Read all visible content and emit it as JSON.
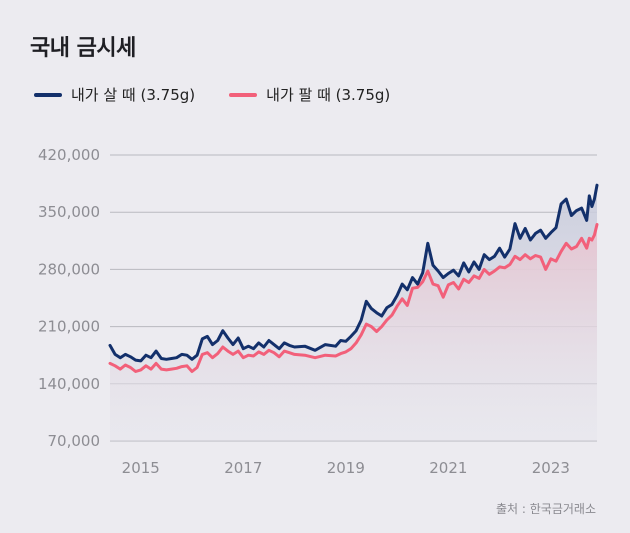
{
  "title": "국내 금시세",
  "source": "출처 : 한국금거래소",
  "colors": {
    "buy": "#13306b",
    "sell": "#f2607a",
    "grid": "#b9b9bf",
    "tick": "#8d8d93"
  },
  "chart_data": {
    "type": "line",
    "title": "국내 금시세",
    "xlabel": "",
    "ylabel": "",
    "xlim": [
      2014.4,
      2023.9
    ],
    "ylim": [
      70000,
      420000
    ],
    "yticks": [
      420000,
      350000,
      280000,
      210000,
      140000,
      70000
    ],
    "ytick_labels": [
      "420,000",
      "350,000",
      "280,000",
      "210,000",
      "140,000",
      "70,000"
    ],
    "xticks": [
      2015,
      2017,
      2019,
      2021,
      2023
    ],
    "xtick_labels": [
      "2015",
      "2017",
      "2019",
      "2021",
      "2023"
    ],
    "grid": true,
    "legend": "top-left",
    "series": [
      {
        "name": "내가 살 때 (3.75g)",
        "color": "#13306b",
        "points": [
          [
            2014.4,
            187000
          ],
          [
            2014.5,
            176000
          ],
          [
            2014.6,
            172000
          ],
          [
            2014.7,
            176000
          ],
          [
            2014.8,
            173000
          ],
          [
            2014.9,
            169000
          ],
          [
            2015.0,
            168000
          ],
          [
            2015.1,
            175000
          ],
          [
            2015.2,
            172000
          ],
          [
            2015.3,
            180000
          ],
          [
            2015.4,
            171000
          ],
          [
            2015.5,
            170000
          ],
          [
            2015.6,
            171000
          ],
          [
            2015.7,
            172000
          ],
          [
            2015.8,
            176000
          ],
          [
            2015.9,
            175000
          ],
          [
            2016.0,
            170000
          ],
          [
            2016.1,
            175000
          ],
          [
            2016.2,
            195000
          ],
          [
            2016.3,
            198000
          ],
          [
            2016.4,
            188000
          ],
          [
            2016.5,
            193000
          ],
          [
            2016.6,
            205000
          ],
          [
            2016.7,
            196000
          ],
          [
            2016.8,
            188000
          ],
          [
            2016.9,
            196000
          ],
          [
            2017.0,
            183000
          ],
          [
            2017.1,
            186000
          ],
          [
            2017.2,
            183000
          ],
          [
            2017.3,
            190000
          ],
          [
            2017.4,
            185000
          ],
          [
            2017.5,
            193000
          ],
          [
            2017.6,
            188000
          ],
          [
            2017.7,
            183000
          ],
          [
            2017.8,
            190000
          ],
          [
            2017.9,
            187000
          ],
          [
            2018.0,
            185000
          ],
          [
            2018.2,
            186000
          ],
          [
            2018.4,
            181000
          ],
          [
            2018.6,
            188000
          ],
          [
            2018.8,
            186000
          ],
          [
            2018.9,
            193000
          ],
          [
            2019.0,
            192000
          ],
          [
            2019.1,
            198000
          ],
          [
            2019.2,
            205000
          ],
          [
            2019.3,
            218000
          ],
          [
            2019.4,
            241000
          ],
          [
            2019.5,
            232000
          ],
          [
            2019.6,
            227000
          ],
          [
            2019.7,
            223000
          ],
          [
            2019.8,
            233000
          ],
          [
            2019.9,
            237000
          ],
          [
            2020.0,
            248000
          ],
          [
            2020.1,
            262000
          ],
          [
            2020.2,
            255000
          ],
          [
            2020.3,
            270000
          ],
          [
            2020.4,
            262000
          ],
          [
            2020.5,
            276000
          ],
          [
            2020.6,
            312000
          ],
          [
            2020.7,
            285000
          ],
          [
            2020.8,
            278000
          ],
          [
            2020.9,
            270000
          ],
          [
            2021.0,
            275000
          ],
          [
            2021.1,
            279000
          ],
          [
            2021.2,
            272000
          ],
          [
            2021.3,
            288000
          ],
          [
            2021.4,
            277000
          ],
          [
            2021.5,
            289000
          ],
          [
            2021.6,
            280000
          ],
          [
            2021.7,
            298000
          ],
          [
            2021.8,
            292000
          ],
          [
            2021.9,
            296000
          ],
          [
            2022.0,
            306000
          ],
          [
            2022.1,
            295000
          ],
          [
            2022.2,
            305000
          ],
          [
            2022.3,
            336000
          ],
          [
            2022.4,
            318000
          ],
          [
            2022.5,
            330000
          ],
          [
            2022.6,
            316000
          ],
          [
            2022.7,
            324000
          ],
          [
            2022.8,
            328000
          ],
          [
            2022.9,
            318000
          ],
          [
            2023.0,
            325000
          ],
          [
            2023.1,
            331000
          ],
          [
            2023.2,
            360000
          ],
          [
            2023.3,
            366000
          ],
          [
            2023.4,
            346000
          ],
          [
            2023.5,
            352000
          ],
          [
            2023.6,
            355000
          ],
          [
            2023.7,
            340000
          ],
          [
            2023.75,
            370000
          ],
          [
            2023.8,
            357000
          ],
          [
            2023.85,
            366000
          ],
          [
            2023.9,
            383000
          ]
        ]
      },
      {
        "name": "내가 팔 때 (3.75g)",
        "color": "#f2607a",
        "points": [
          [
            2014.4,
            165000
          ],
          [
            2014.5,
            162000
          ],
          [
            2014.6,
            158000
          ],
          [
            2014.7,
            163000
          ],
          [
            2014.8,
            160000
          ],
          [
            2014.9,
            155000
          ],
          [
            2015.0,
            157000
          ],
          [
            2015.1,
            162000
          ],
          [
            2015.2,
            158000
          ],
          [
            2015.3,
            165000
          ],
          [
            2015.4,
            158000
          ],
          [
            2015.5,
            157000
          ],
          [
            2015.6,
            158000
          ],
          [
            2015.7,
            159000
          ],
          [
            2015.8,
            161000
          ],
          [
            2015.9,
            162000
          ],
          [
            2016.0,
            155000
          ],
          [
            2016.1,
            160000
          ],
          [
            2016.2,
            176000
          ],
          [
            2016.3,
            178000
          ],
          [
            2016.4,
            172000
          ],
          [
            2016.5,
            177000
          ],
          [
            2016.6,
            185000
          ],
          [
            2016.7,
            180000
          ],
          [
            2016.8,
            176000
          ],
          [
            2016.9,
            180000
          ],
          [
            2017.0,
            172000
          ],
          [
            2017.1,
            175000
          ],
          [
            2017.2,
            174000
          ],
          [
            2017.3,
            179000
          ],
          [
            2017.4,
            176000
          ],
          [
            2017.5,
            181000
          ],
          [
            2017.6,
            178000
          ],
          [
            2017.7,
            173000
          ],
          [
            2017.8,
            180000
          ],
          [
            2017.9,
            178000
          ],
          [
            2018.0,
            176000
          ],
          [
            2018.2,
            175000
          ],
          [
            2018.4,
            172000
          ],
          [
            2018.6,
            175000
          ],
          [
            2018.8,
            174000
          ],
          [
            2018.9,
            177000
          ],
          [
            2019.0,
            179000
          ],
          [
            2019.1,
            183000
          ],
          [
            2019.2,
            190000
          ],
          [
            2019.3,
            200000
          ],
          [
            2019.4,
            213000
          ],
          [
            2019.5,
            210000
          ],
          [
            2019.6,
            204000
          ],
          [
            2019.7,
            210000
          ],
          [
            2019.8,
            218000
          ],
          [
            2019.9,
            224000
          ],
          [
            2020.0,
            235000
          ],
          [
            2020.1,
            244000
          ],
          [
            2020.2,
            236000
          ],
          [
            2020.3,
            257000
          ],
          [
            2020.4,
            258000
          ],
          [
            2020.5,
            265000
          ],
          [
            2020.6,
            278000
          ],
          [
            2020.7,
            262000
          ],
          [
            2020.8,
            260000
          ],
          [
            2020.9,
            246000
          ],
          [
            2021.0,
            261000
          ],
          [
            2021.1,
            264000
          ],
          [
            2021.2,
            256000
          ],
          [
            2021.3,
            268000
          ],
          [
            2021.4,
            264000
          ],
          [
            2021.5,
            272000
          ],
          [
            2021.6,
            269000
          ],
          [
            2021.7,
            280000
          ],
          [
            2021.8,
            274000
          ],
          [
            2021.9,
            278000
          ],
          [
            2022.0,
            283000
          ],
          [
            2022.1,
            282000
          ],
          [
            2022.2,
            286000
          ],
          [
            2022.3,
            296000
          ],
          [
            2022.4,
            292000
          ],
          [
            2022.5,
            298000
          ],
          [
            2022.6,
            293000
          ],
          [
            2022.7,
            297000
          ],
          [
            2022.8,
            295000
          ],
          [
            2022.9,
            280000
          ],
          [
            2023.0,
            293000
          ],
          [
            2023.1,
            290000
          ],
          [
            2023.2,
            302000
          ],
          [
            2023.3,
            312000
          ],
          [
            2023.4,
            305000
          ],
          [
            2023.5,
            308000
          ],
          [
            2023.6,
            318000
          ],
          [
            2023.7,
            306000
          ],
          [
            2023.75,
            318000
          ],
          [
            2023.8,
            316000
          ],
          [
            2023.85,
            322000
          ],
          [
            2023.9,
            335000
          ]
        ]
      }
    ]
  }
}
